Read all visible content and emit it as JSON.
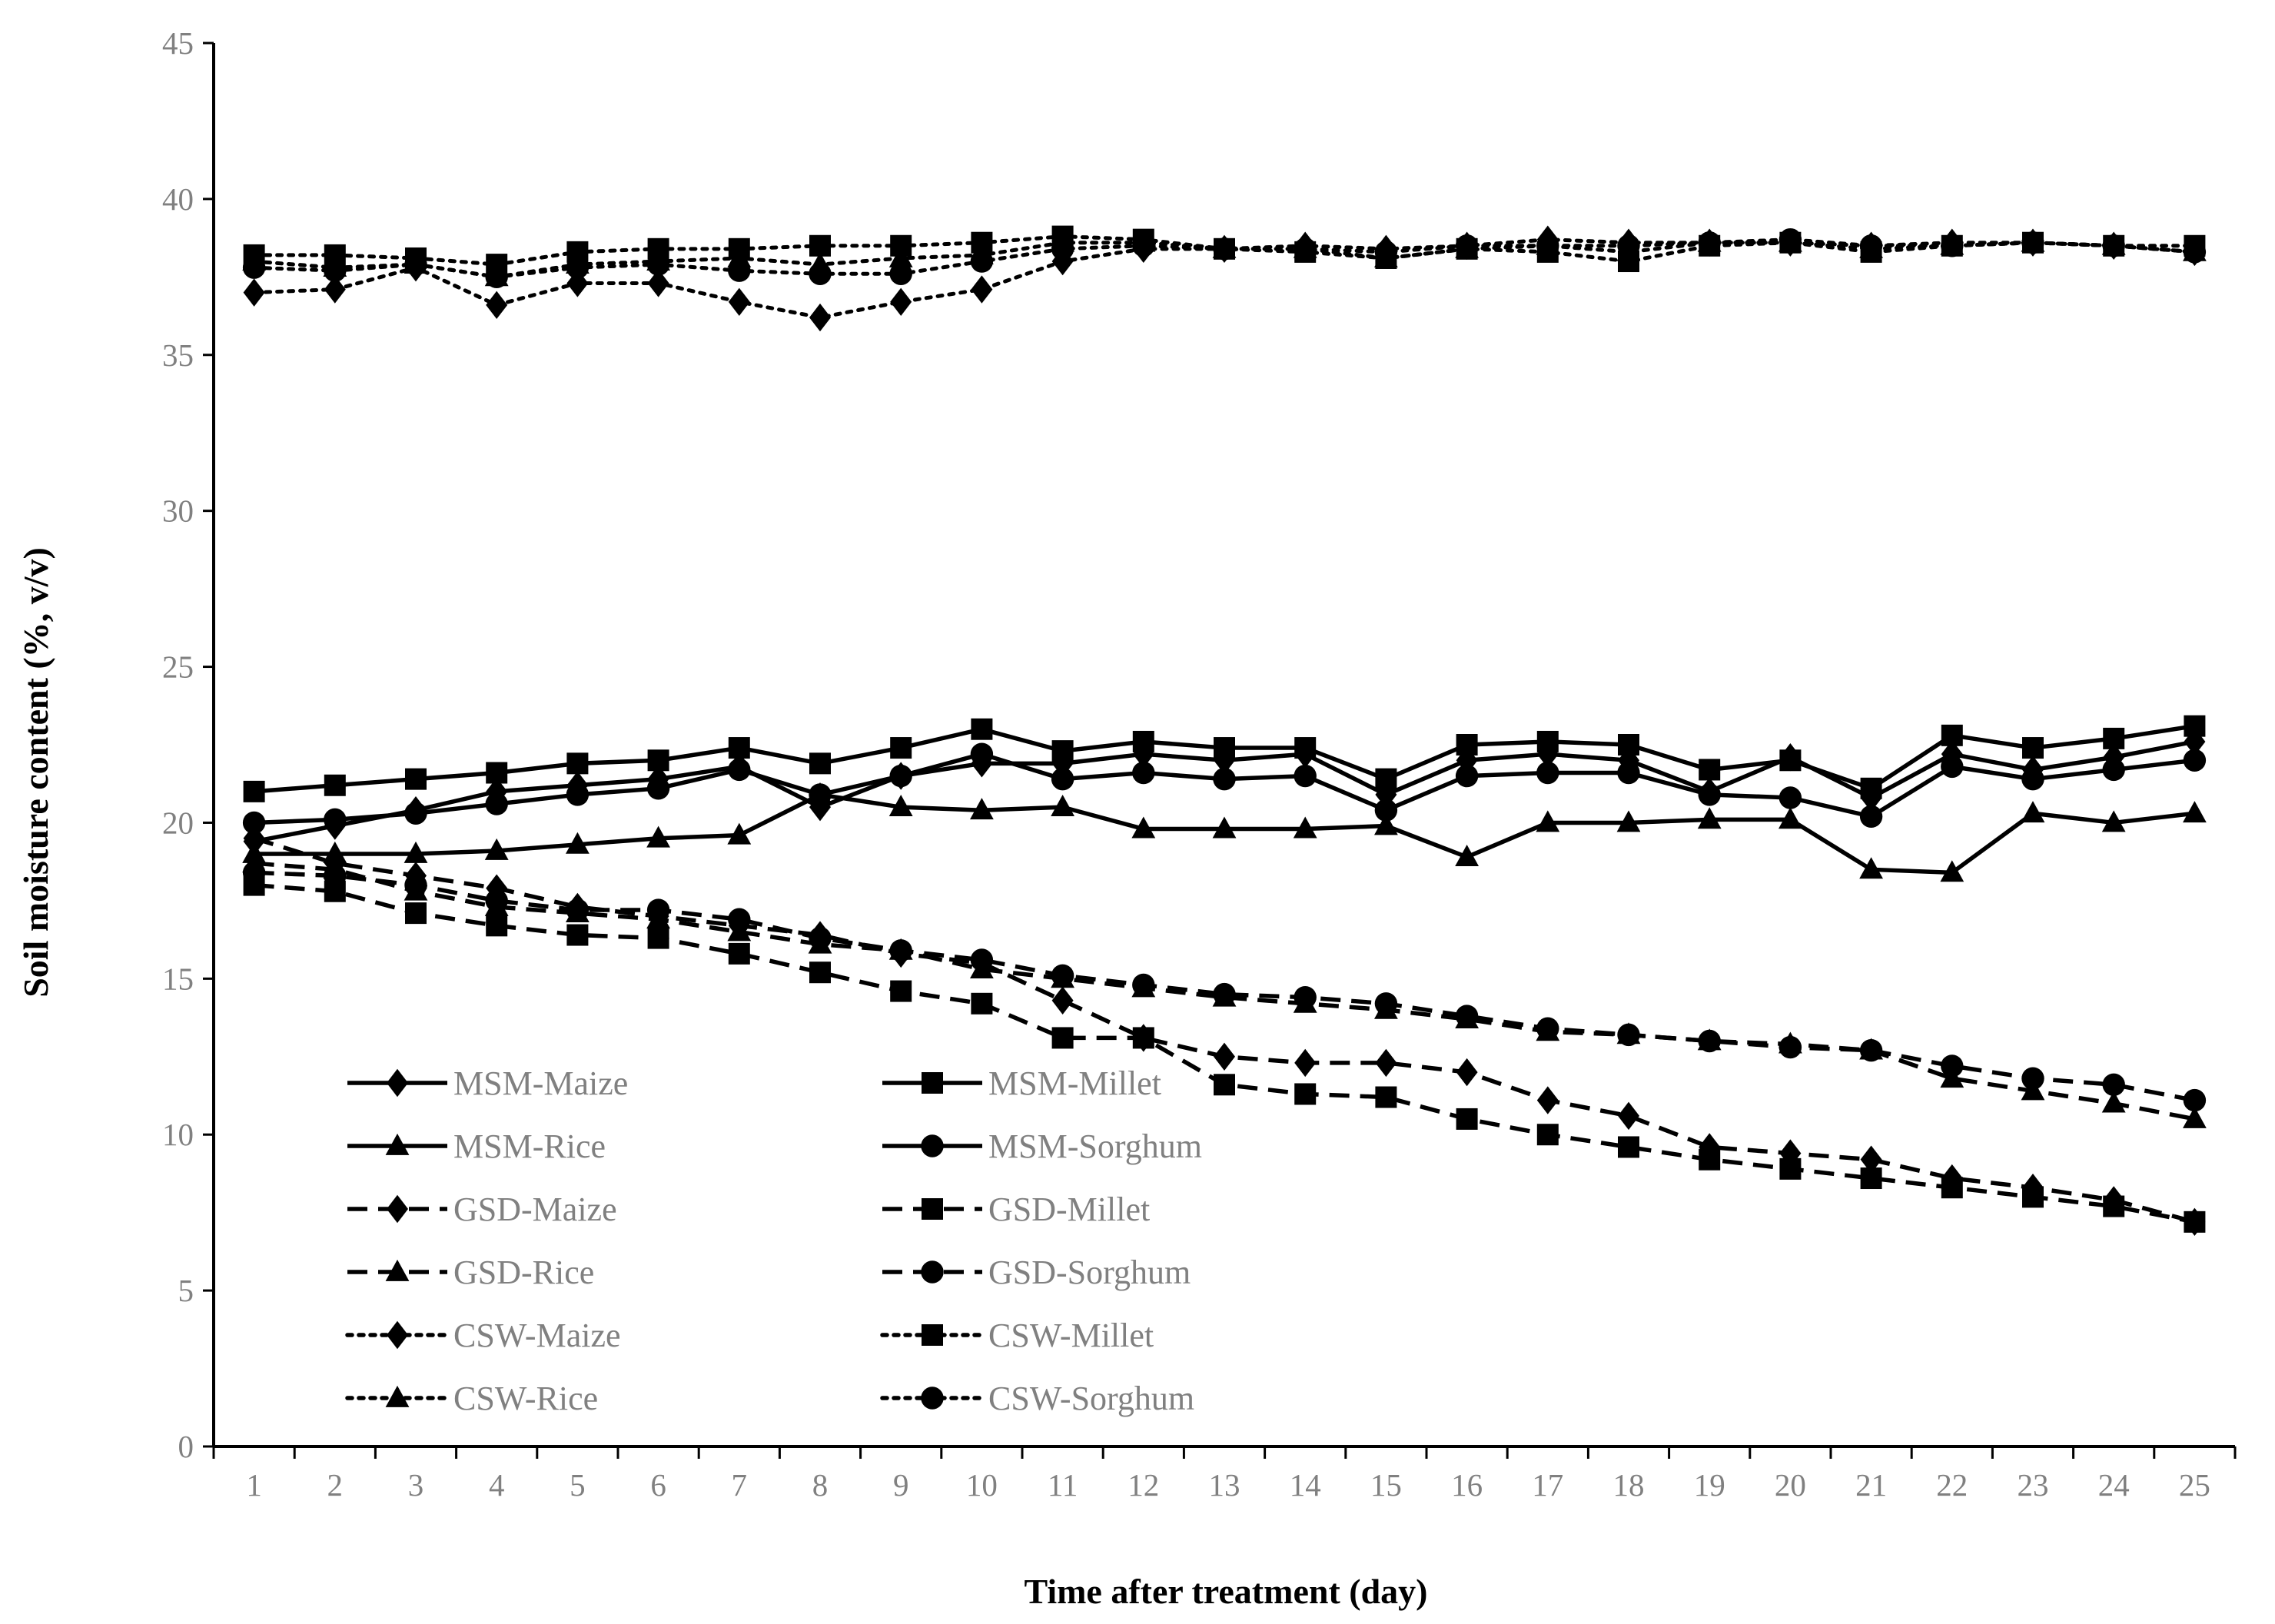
{
  "chart_data": {
    "type": "line",
    "title": "",
    "xlabel": "Time after treatment (day)",
    "ylabel": "Soil moisture content (%, v/v)",
    "xlim": [
      0.5,
      25.5
    ],
    "ylim": [
      0,
      45
    ],
    "yticks": [
      "0",
      "5",
      "10",
      "15",
      "20",
      "25",
      "30",
      "35",
      "40",
      "45"
    ],
    "categories": [
      "1",
      "2",
      "3",
      "4",
      "5",
      "6",
      "7",
      "8",
      "9",
      "10",
      "11",
      "12",
      "13",
      "14",
      "15",
      "16",
      "17",
      "18",
      "19",
      "20",
      "21",
      "22",
      "23",
      "24",
      "25"
    ],
    "grid": false,
    "legend_position": "bottom-left",
    "colors": {
      "line": "#000000",
      "axis": "#000000",
      "tick_text": "#808080"
    },
    "series": [
      {
        "name": "MSM-Maize",
        "line": "solid",
        "marker": "diamond",
        "values": [
          19.4,
          19.9,
          20.4,
          21.0,
          21.2,
          21.4,
          21.8,
          20.5,
          21.5,
          21.9,
          21.9,
          22.2,
          22.0,
          22.2,
          20.9,
          22.0,
          22.2,
          22.0,
          21.0,
          22.1,
          20.8,
          22.2,
          21.7,
          22.1,
          22.6
        ]
      },
      {
        "name": "MSM-Millet",
        "line": "solid",
        "marker": "square",
        "values": [
          21.0,
          21.2,
          21.4,
          21.6,
          21.9,
          22.0,
          22.4,
          21.9,
          22.4,
          23.0,
          22.3,
          22.6,
          22.4,
          22.4,
          21.4,
          22.5,
          22.6,
          22.5,
          21.7,
          22.0,
          21.1,
          22.8,
          22.4,
          22.7,
          23.1
        ]
      },
      {
        "name": "MSM-Rice",
        "line": "solid",
        "marker": "triangle",
        "values": [
          19.0,
          19.0,
          19.0,
          19.1,
          19.3,
          19.5,
          19.6,
          20.9,
          20.5,
          20.4,
          20.5,
          19.8,
          19.8,
          19.8,
          19.9,
          18.9,
          20.0,
          20.0,
          20.1,
          20.1,
          18.5,
          18.4,
          20.3,
          20.0,
          20.3
        ]
      },
      {
        "name": "MSM-Sorghum",
        "line": "solid",
        "marker": "circle",
        "values": [
          20.0,
          20.1,
          20.3,
          20.6,
          20.9,
          21.1,
          21.7,
          20.9,
          21.5,
          22.2,
          21.4,
          21.6,
          21.4,
          21.5,
          20.4,
          21.5,
          21.6,
          21.6,
          20.9,
          20.8,
          20.2,
          21.8,
          21.4,
          21.7,
          22.0
        ]
      },
      {
        "name": "GSD-Maize",
        "line": "dashed",
        "marker": "diamond",
        "values": [
          19.5,
          18.7,
          18.3,
          17.9,
          17.3,
          17.0,
          16.7,
          16.4,
          15.8,
          15.5,
          14.3,
          13.1,
          12.5,
          12.3,
          12.3,
          12.0,
          11.1,
          10.6,
          9.6,
          9.4,
          9.2,
          8.6,
          8.3,
          7.9,
          7.2
        ]
      },
      {
        "name": "GSD-Millet",
        "line": "dashed",
        "marker": "square",
        "values": [
          18.0,
          17.8,
          17.1,
          16.7,
          16.4,
          16.3,
          15.8,
          15.2,
          14.6,
          14.2,
          13.1,
          13.1,
          11.6,
          11.3,
          11.2,
          10.5,
          10.0,
          9.6,
          9.2,
          8.9,
          8.6,
          8.3,
          8.0,
          7.7,
          7.2
        ]
      },
      {
        "name": "GSD-Rice",
        "line": "dashed",
        "marker": "triangle",
        "values": [
          18.7,
          18.5,
          17.8,
          17.3,
          17.1,
          16.9,
          16.5,
          16.1,
          15.9,
          15.3,
          15.0,
          14.7,
          14.4,
          14.2,
          14.0,
          13.7,
          13.3,
          13.2,
          13.0,
          12.9,
          12.7,
          11.8,
          11.4,
          11.0,
          10.5
        ]
      },
      {
        "name": "GSD-Sorghum",
        "line": "dashed",
        "marker": "circle",
        "values": [
          18.4,
          18.3,
          18.0,
          17.5,
          17.2,
          17.2,
          16.9,
          16.3,
          15.9,
          15.6,
          15.1,
          14.8,
          14.5,
          14.4,
          14.2,
          13.8,
          13.4,
          13.2,
          13.0,
          12.8,
          12.7,
          12.2,
          11.8,
          11.6,
          11.1
        ]
      },
      {
        "name": "CSW-Maize",
        "line": "dotted",
        "marker": "diamond",
        "values": [
          37.0,
          37.1,
          37.8,
          36.6,
          37.3,
          37.3,
          36.7,
          36.2,
          36.7,
          37.1,
          38.0,
          38.4,
          38.4,
          38.5,
          38.4,
          38.5,
          38.7,
          38.6,
          38.6,
          38.6,
          38.5,
          38.6,
          38.6,
          38.5,
          38.3
        ]
      },
      {
        "name": "CSW-Millet",
        "line": "dotted",
        "marker": "square",
        "values": [
          38.2,
          38.2,
          38.1,
          37.9,
          38.3,
          38.4,
          38.4,
          38.5,
          38.5,
          38.6,
          38.8,
          38.7,
          38.4,
          38.3,
          38.1,
          38.4,
          38.3,
          38.0,
          38.5,
          38.6,
          38.3,
          38.5,
          38.6,
          38.5,
          38.5
        ]
      },
      {
        "name": "CSW-Rice",
        "line": "dotted",
        "marker": "triangle",
        "values": [
          38.0,
          37.8,
          37.9,
          37.5,
          37.9,
          38.0,
          38.1,
          37.9,
          38.1,
          38.2,
          38.6,
          38.6,
          38.4,
          38.4,
          38.1,
          38.4,
          38.5,
          38.3,
          38.6,
          38.6,
          38.4,
          38.5,
          38.6,
          38.5,
          38.3
        ]
      },
      {
        "name": "CSW-Sorghum",
        "line": "dotted",
        "marker": "circle",
        "values": [
          37.8,
          37.7,
          37.9,
          37.5,
          37.8,
          37.9,
          37.7,
          37.6,
          37.6,
          38.0,
          38.4,
          38.5,
          38.4,
          38.4,
          38.3,
          38.5,
          38.5,
          38.5,
          38.6,
          38.7,
          38.5,
          38.5,
          38.6,
          38.5,
          38.3
        ]
      }
    ]
  }
}
